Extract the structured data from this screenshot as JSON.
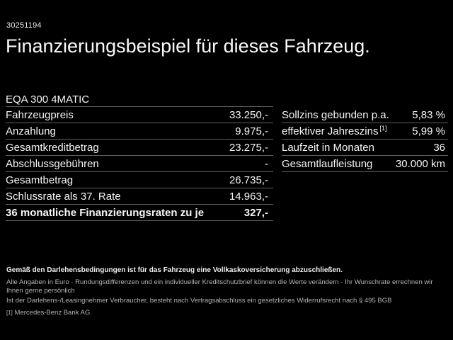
{
  "page": {
    "reference_number": "30251194",
    "title": "Finanzierungsbeispiel für dieses Fahrzeug.",
    "model_name": "EQA 300 4MATIC"
  },
  "finance_table": {
    "rows": [
      {
        "label": "Fahrzeugpreis",
        "value": "33.250,-"
      },
      {
        "label": "Anzahlung",
        "value": "9.975,-"
      },
      {
        "label": "Gesamtkreditbetrag",
        "value": "23.275,-"
      },
      {
        "label": "Abschlussgebühren",
        "value": "-"
      },
      {
        "label": "Gesamtbetrag",
        "value": "26.735,-"
      },
      {
        "label": "Schlussrate als 37. Rate",
        "value": "14.963,-"
      },
      {
        "label": "36 monatliche Finanzierungsraten zu je",
        "value": "327,-"
      }
    ]
  },
  "conditions_table": {
    "rows": [
      {
        "label": "Sollzins gebunden p.a.",
        "value": "5,83 %"
      },
      {
        "label": "effektiver Jahreszins",
        "footnote_marker": "[1]",
        "value": "5,99 %"
      },
      {
        "label": "Laufzeit in Monaten",
        "value": "36"
      },
      {
        "label": "Gesamtlaufleistung",
        "value": "30.000 km"
      }
    ]
  },
  "footer": {
    "insurance_note": "Gemäß den Darlehensbedingungen ist für das Fahrzeug eine Vollkaskoversicherung abzuschließen.",
    "disclaimer_line1": "Alle Angaben in Euro · Rundungsdifferenzen und ein individueller Kreditschutzbrief können die Werte verändern · Ihr Wunschrate errechnen wir Ihnen gerne persönlich",
    "disclaimer_line2": "Ist der Darlehens-/Leasingnehmer Verbraucher, besteht nach Vertragsabschluss ein gesetzliches Widerrufsrecht nach § 495 BGB",
    "footnote_marker": "[1]",
    "footnote_text": "Mercedes-Benz Bank AG."
  },
  "colors": {
    "background": "#000000",
    "primary_text": "#f5f5f5",
    "secondary_text": "#b4b4b4",
    "divider": "#5f5f5f"
  }
}
